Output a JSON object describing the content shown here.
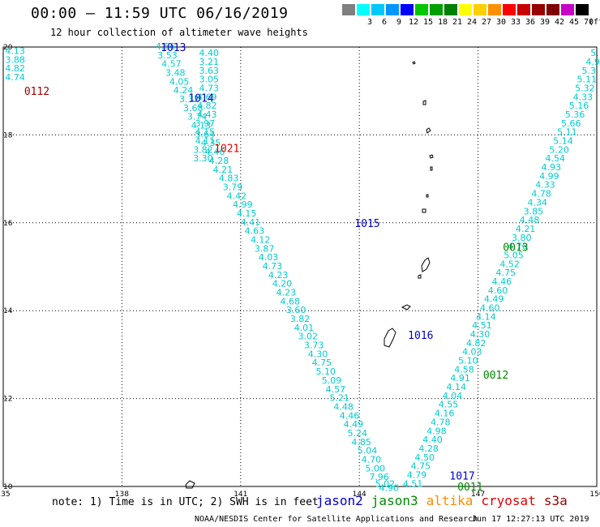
{
  "title": "00:00 – 11:59 UTC 06/16/2019",
  "subtitle": "12 hour collection of altimeter wave heights",
  "legend": {
    "unit": "(ft)",
    "bins": [
      {
        "label": "",
        "color": "#7f7f7f"
      },
      {
        "label": "3",
        "color": "#00ffff"
      },
      {
        "label": "6",
        "color": "#00c8ff"
      },
      {
        "label": "9",
        "color": "#0096ff"
      },
      {
        "label": "12",
        "color": "#0000ff"
      },
      {
        "label": "15",
        "color": "#00c800"
      },
      {
        "label": "18",
        "color": "#00a000"
      },
      {
        "label": "21",
        "color": "#008000"
      },
      {
        "label": "24",
        "color": "#ffff00"
      },
      {
        "label": "27",
        "color": "#ffd000"
      },
      {
        "label": "30",
        "color": "#ff9000"
      },
      {
        "label": "33",
        "color": "#ff0000"
      },
      {
        "label": "36",
        "color": "#c80000"
      },
      {
        "label": "39",
        "color": "#960000"
      },
      {
        "label": "42",
        "color": "#7f0000"
      },
      {
        "label": "45",
        "color": "#c800c8"
      },
      {
        "label": "70",
        "color": "#000000"
      }
    ]
  },
  "axes": {
    "x_ticks": [
      "135",
      "138",
      "141",
      "144",
      "147",
      "150"
    ],
    "y_ticks": [
      "20",
      "18",
      "16",
      "14",
      "12",
      "10"
    ]
  },
  "note": "note: 1) Time is in UTC; 2) SWH is in feet",
  "satellites": [
    {
      "name": "jason2",
      "color": "#0000cc"
    },
    {
      "name": "jason3",
      "color": "#008800"
    },
    {
      "name": "altika",
      "color": "#ff8c00"
    },
    {
      "name": "cryosat",
      "color": "#dd0000"
    },
    {
      "name": "s3a",
      "color": "#990000"
    }
  ],
  "credit": "NOAA/NESDIS Center for Satellite Applications and Research",
  "timestamp": "Jun 17 12:27:13 UTC 2019",
  "colors": {
    "swh": "#00cccc"
  },
  "chart_data": {
    "type": "scatter",
    "xlim": [
      135,
      150
    ],
    "ylim": [
      10,
      20
    ],
    "grid": true,
    "pass_labels": [
      {
        "text": "0112",
        "lon": 135.85,
        "lat": 19.0,
        "color": "#990000"
      },
      {
        "text": "1021",
        "lon": 140.65,
        "lat": 17.7,
        "color": "#dd0000"
      },
      {
        "text": "1013",
        "lon": 139.3,
        "lat": 20.0,
        "color": "#0000cc"
      },
      {
        "text": "1014",
        "lon": 140.0,
        "lat": 18.85,
        "color": "#0000cc"
      },
      {
        "text": "1015",
        "lon": 144.2,
        "lat": 16.0,
        "color": "#0000cc"
      },
      {
        "text": "1016",
        "lon": 145.55,
        "lat": 13.45,
        "color": "#0000cc"
      },
      {
        "text": "1017",
        "lon": 146.6,
        "lat": 10.25,
        "color": "#0000cc"
      },
      {
        "text": "0013",
        "lon": 147.95,
        "lat": 15.45,
        "color": "#008800"
      },
      {
        "text": "0012",
        "lon": 147.45,
        "lat": 12.55,
        "color": "#008800"
      },
      {
        "text": "0011",
        "lon": 146.8,
        "lat": 10.0,
        "color": "#008800"
      }
    ],
    "tracks": [
      {
        "name": "",
        "points": [
          {
            "lon": 135.3,
            "lat": 19.9,
            "v": "4.13"
          },
          {
            "lon": 135.3,
            "lat": 19.7,
            "v": "3.88"
          },
          {
            "lon": 135.3,
            "lat": 19.5,
            "v": "4.82"
          },
          {
            "lon": 135.3,
            "lat": 19.3,
            "v": "4.74"
          }
        ]
      },
      {
        "name": "",
        "points": [
          {
            "lon": 140.2,
            "lat": 19.85,
            "v": "4.40"
          },
          {
            "lon": 140.2,
            "lat": 19.65,
            "v": "3.21"
          },
          {
            "lon": 140.2,
            "lat": 19.45,
            "v": "3.63"
          },
          {
            "lon": 140.2,
            "lat": 19.25,
            "v": "3.05"
          },
          {
            "lon": 140.2,
            "lat": 19.05,
            "v": "4.73"
          },
          {
            "lon": 140.15,
            "lat": 18.85,
            "v": "4.69"
          },
          {
            "lon": 140.15,
            "lat": 18.65,
            "v": "4.82"
          },
          {
            "lon": 140.15,
            "lat": 18.45,
            "v": "4.43"
          },
          {
            "lon": 140.1,
            "lat": 18.25,
            "v": "3.97"
          },
          {
            "lon": 140.1,
            "lat": 18.05,
            "v": "4.15"
          },
          {
            "lon": 140.1,
            "lat": 17.85,
            "v": "4.11"
          },
          {
            "lon": 140.05,
            "lat": 17.65,
            "v": "3.82"
          },
          {
            "lon": 140.05,
            "lat": 17.45,
            "v": "3.30"
          }
        ]
      },
      {
        "name": "",
        "points": [
          {
            "lon": 139.1,
            "lat": 20.0,
            "v": "4.56"
          },
          {
            "lon": 139.15,
            "lat": 19.8,
            "v": "3.53"
          },
          {
            "lon": 139.25,
            "lat": 19.6,
            "v": "4.57"
          },
          {
            "lon": 139.35,
            "lat": 19.4,
            "v": "3.48"
          },
          {
            "lon": 139.45,
            "lat": 19.2,
            "v": "4.05"
          },
          {
            "lon": 139.55,
            "lat": 19.0,
            "v": "4.24"
          },
          {
            "lon": 139.7,
            "lat": 18.8,
            "v": "3.32"
          },
          {
            "lon": 139.8,
            "lat": 18.6,
            "v": "3.68"
          },
          {
            "lon": 139.9,
            "lat": 18.4,
            "v": "3.74"
          },
          {
            "lon": 140.0,
            "lat": 18.2,
            "v": "4.13"
          },
          {
            "lon": 140.1,
            "lat": 18.0,
            "v": "3.64"
          },
          {
            "lon": 140.25,
            "lat": 17.8,
            "v": "4.35"
          },
          {
            "lon": 140.35,
            "lat": 17.6,
            "v": "4.46"
          },
          {
            "lon": 140.45,
            "lat": 17.4,
            "v": "4.28"
          },
          {
            "lon": 140.55,
            "lat": 17.2,
            "v": "4.21"
          },
          {
            "lon": 140.7,
            "lat": 17.0,
            "v": "4.83"
          },
          {
            "lon": 140.8,
            "lat": 16.8,
            "v": "3.79"
          },
          {
            "lon": 140.9,
            "lat": 16.6,
            "v": "4.42"
          },
          {
            "lon": 141.05,
            "lat": 16.4,
            "v": "4.99"
          },
          {
            "lon": 141.15,
            "lat": 16.2,
            "v": "4.15"
          },
          {
            "lon": 141.25,
            "lat": 16.0,
            "v": "4.41"
          },
          {
            "lon": 141.35,
            "lat": 15.8,
            "v": "4.63"
          },
          {
            "lon": 141.5,
            "lat": 15.6,
            "v": "4.12"
          },
          {
            "lon": 141.6,
            "lat": 15.4,
            "v": "3.87"
          },
          {
            "lon": 141.7,
            "lat": 15.2,
            "v": "4.03"
          },
          {
            "lon": 141.8,
            "lat": 15.0,
            "v": "4.73"
          },
          {
            "lon": 141.95,
            "lat": 14.8,
            "v": "4.23"
          },
          {
            "lon": 142.05,
            "lat": 14.6,
            "v": "4.20"
          },
          {
            "lon": 142.15,
            "lat": 14.4,
            "v": "4.23"
          },
          {
            "lon": 142.25,
            "lat": 14.2,
            "v": "4.68"
          },
          {
            "lon": 142.4,
            "lat": 14.0,
            "v": "3.60"
          },
          {
            "lon": 142.5,
            "lat": 13.8,
            "v": "3.82"
          },
          {
            "lon": 142.6,
            "lat": 13.6,
            "v": "4.01"
          },
          {
            "lon": 142.7,
            "lat": 13.4,
            "v": "3.02"
          },
          {
            "lon": 142.85,
            "lat": 13.2,
            "v": "3.73"
          },
          {
            "lon": 142.95,
            "lat": 13.0,
            "v": "4.30"
          },
          {
            "lon": 143.05,
            "lat": 12.8,
            "v": "4.75"
          },
          {
            "lon": 143.15,
            "lat": 12.6,
            "v": "5.10"
          },
          {
            "lon": 143.3,
            "lat": 12.4,
            "v": "5.09"
          },
          {
            "lon": 143.4,
            "lat": 12.2,
            "v": "4.57"
          },
          {
            "lon": 143.5,
            "lat": 12.0,
            "v": "5.21"
          },
          {
            "lon": 143.6,
            "lat": 11.8,
            "v": "4.48"
          },
          {
            "lon": 143.75,
            "lat": 11.6,
            "v": "4.46"
          },
          {
            "lon": 143.85,
            "lat": 11.4,
            "v": "4.49"
          },
          {
            "lon": 143.95,
            "lat": 11.2,
            "v": "5.24"
          },
          {
            "lon": 144.05,
            "lat": 11.0,
            "v": "4.85"
          },
          {
            "lon": 144.2,
            "lat": 10.8,
            "v": "5.04"
          },
          {
            "lon": 144.3,
            "lat": 10.6,
            "v": "4.70"
          },
          {
            "lon": 144.4,
            "lat": 10.4,
            "v": "5.00"
          },
          {
            "lon": 144.5,
            "lat": 10.2,
            "v": "7.96"
          },
          {
            "lon": 144.65,
            "lat": 10.05,
            "v": "5.02"
          },
          {
            "lon": 144.75,
            "lat": 9.95,
            "v": "4.90"
          }
        ]
      },
      {
        "name": "",
        "points": [
          {
            "lon": 149.95,
            "lat": 19.85,
            "v": "5."
          },
          {
            "lon": 149.9,
            "lat": 19.65,
            "v": "4.9"
          },
          {
            "lon": 149.8,
            "lat": 19.45,
            "v": "5.3"
          },
          {
            "lon": 149.75,
            "lat": 19.25,
            "v": "5.11"
          },
          {
            "lon": 149.7,
            "lat": 19.05,
            "v": "5.32"
          },
          {
            "lon": 149.65,
            "lat": 18.85,
            "v": "4.33"
          },
          {
            "lon": 149.55,
            "lat": 18.65,
            "v": "5.16"
          },
          {
            "lon": 149.45,
            "lat": 18.45,
            "v": "5.36"
          },
          {
            "lon": 149.35,
            "lat": 18.25,
            "v": "5.66"
          },
          {
            "lon": 149.25,
            "lat": 18.05,
            "v": "5.11"
          },
          {
            "lon": 149.15,
            "lat": 17.85,
            "v": "5.14"
          },
          {
            "lon": 149.05,
            "lat": 17.65,
            "v": "5.20"
          },
          {
            "lon": 148.95,
            "lat": 17.45,
            "v": "4.54"
          },
          {
            "lon": 148.85,
            "lat": 17.25,
            "v": "4.93"
          },
          {
            "lon": 148.8,
            "lat": 17.05,
            "v": "4.99"
          },
          {
            "lon": 148.7,
            "lat": 16.85,
            "v": "4.33"
          },
          {
            "lon": 148.6,
            "lat": 16.65,
            "v": "4.78"
          },
          {
            "lon": 148.5,
            "lat": 16.45,
            "v": "4.34"
          },
          {
            "lon": 148.4,
            "lat": 16.25,
            "v": "3.85"
          },
          {
            "lon": 148.3,
            "lat": 16.05,
            "v": "4.48"
          },
          {
            "lon": 148.2,
            "lat": 15.85,
            "v": "4.21"
          },
          {
            "lon": 148.1,
            "lat": 15.65,
            "v": "3.80"
          },
          {
            "lon": 148.0,
            "lat": 15.45,
            "v": "4.76"
          },
          {
            "lon": 147.9,
            "lat": 15.25,
            "v": "5.05"
          },
          {
            "lon": 147.8,
            "lat": 15.05,
            "v": "4.52"
          },
          {
            "lon": 147.7,
            "lat": 14.85,
            "v": "4.75"
          },
          {
            "lon": 147.6,
            "lat": 14.65,
            "v": "4.46"
          },
          {
            "lon": 147.5,
            "lat": 14.45,
            "v": "4.60"
          },
          {
            "lon": 147.4,
            "lat": 14.25,
            "v": "4.49"
          },
          {
            "lon": 147.3,
            "lat": 14.05,
            "v": "4.60"
          },
          {
            "lon": 147.2,
            "lat": 13.85,
            "v": "4.14"
          },
          {
            "lon": 147.1,
            "lat": 13.65,
            "v": "4.51"
          },
          {
            "lon": 147.05,
            "lat": 13.45,
            "v": "4.30"
          },
          {
            "lon": 146.95,
            "lat": 13.25,
            "v": "4.82"
          },
          {
            "lon": 146.85,
            "lat": 13.05,
            "v": "4.03"
          },
          {
            "lon": 146.75,
            "lat": 12.85,
            "v": "5.10"
          },
          {
            "lon": 146.65,
            "lat": 12.65,
            "v": "4.58"
          },
          {
            "lon": 146.55,
            "lat": 12.45,
            "v": "4.91"
          },
          {
            "lon": 146.45,
            "lat": 12.25,
            "v": "4.14"
          },
          {
            "lon": 146.35,
            "lat": 12.05,
            "v": "4.04"
          },
          {
            "lon": 146.25,
            "lat": 11.85,
            "v": "4.55"
          },
          {
            "lon": 146.15,
            "lat": 11.65,
            "v": "4.16"
          },
          {
            "lon": 146.05,
            "lat": 11.45,
            "v": "4.78"
          },
          {
            "lon": 145.95,
            "lat": 11.25,
            "v": "4.98"
          },
          {
            "lon": 145.85,
            "lat": 11.05,
            "v": "4.40"
          },
          {
            "lon": 145.75,
            "lat": 10.85,
            "v": "4.28"
          },
          {
            "lon": 145.65,
            "lat": 10.65,
            "v": "4.50"
          },
          {
            "lon": 145.55,
            "lat": 10.45,
            "v": "4.75"
          },
          {
            "lon": 145.45,
            "lat": 10.25,
            "v": "4.79"
          },
          {
            "lon": 145.35,
            "lat": 10.05,
            "v": "4.51"
          }
        ]
      }
    ]
  }
}
